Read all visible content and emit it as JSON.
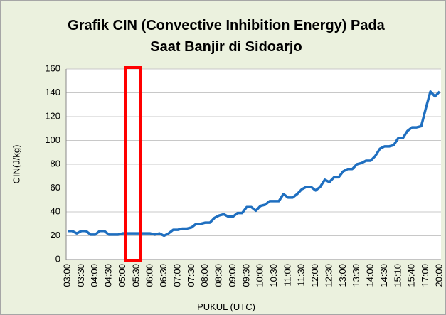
{
  "chart_data": {
    "type": "line",
    "title": [
      "Grafik  CIN (Convective Inhibition Energy) Pada",
      "Saat Banjir di Sidoarjo"
    ],
    "x_label": "PUKUL (UTC)",
    "y_label": "CIN(J/kg)",
    "categories": [
      "03:00",
      null,
      null,
      "03:30",
      null,
      null,
      "04:00",
      null,
      null,
      "04:30",
      null,
      null,
      "05:00",
      null,
      null,
      "05:30",
      null,
      null,
      "06:00",
      null,
      null,
      "06:30",
      null,
      null,
      "07:00",
      null,
      null,
      "07:30",
      null,
      null,
      "08:00",
      null,
      null,
      "08:30",
      null,
      null,
      "09:00",
      null,
      null,
      "09:30",
      null,
      null,
      "10:00",
      null,
      null,
      "10:30",
      null,
      null,
      "11:00",
      null,
      null,
      "11:30",
      null,
      null,
      "12:00",
      null,
      null,
      "12:30",
      null,
      null,
      "13:00",
      null,
      null,
      "13:30",
      null,
      null,
      "14:00",
      null,
      null,
      "14:30",
      null,
      null,
      "15:10",
      null,
      null,
      "15:40",
      null,
      null,
      "17:00",
      null,
      null,
      "20:00"
    ],
    "series": [
      {
        "name": "CIN",
        "color": "#1f6fc0",
        "values": [
          24,
          24,
          22,
          24,
          24,
          21,
          21,
          24,
          24,
          21,
          21,
          21,
          22,
          22,
          22,
          22,
          22,
          22,
          22,
          21,
          22,
          20,
          22,
          25,
          25,
          26,
          26,
          27,
          30,
          30,
          31,
          31,
          35,
          37,
          38,
          36,
          36,
          39,
          39,
          44,
          44,
          41,
          45,
          46,
          49,
          49,
          49,
          55,
          52,
          52,
          55,
          59,
          61,
          61,
          58,
          61,
          67,
          65,
          69,
          69,
          74,
          76,
          76,
          80,
          81,
          83,
          83,
          87,
          93,
          95,
          95,
          96,
          102,
          102,
          108,
          111,
          111,
          112,
          127,
          141,
          137,
          141
        ]
      }
    ],
    "ylim": [
      0,
      160
    ],
    "yticks": [
      0,
      20,
      40,
      60,
      80,
      100,
      120,
      140,
      160
    ],
    "grid": true
  }
}
